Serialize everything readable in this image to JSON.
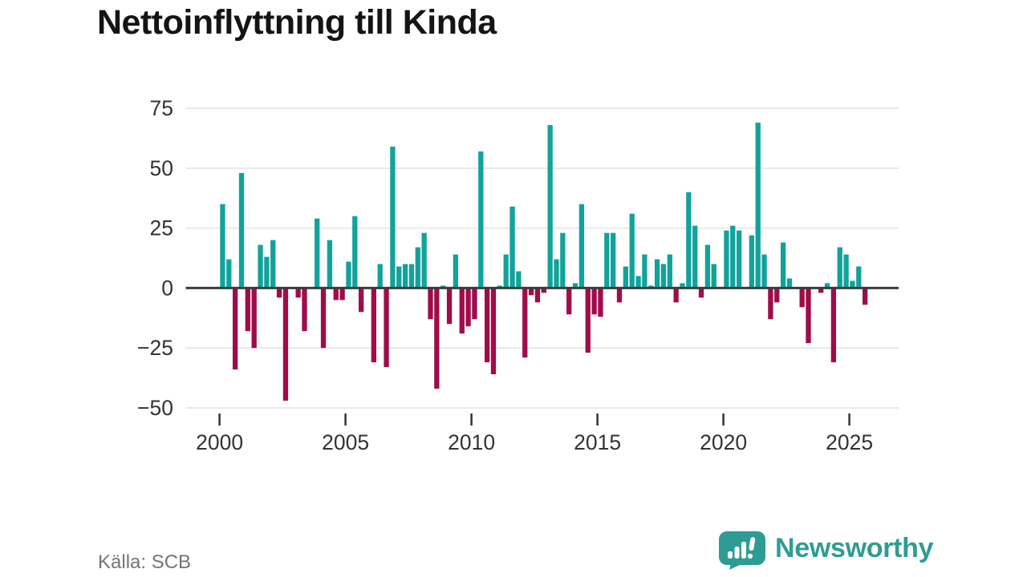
{
  "header": {
    "title": "Nettoinflyttning till Kinda"
  },
  "chart_data": {
    "type": "bar",
    "title": "Nettoinflyttning till Kinda",
    "frequency": "quarterly",
    "period_start": "2000 Q1",
    "period_end": "2025 Q3",
    "values": [
      35,
      12,
      -34,
      48,
      -18,
      -25,
      18,
      13,
      20,
      -4,
      -47,
      0,
      -4,
      -18,
      0,
      29,
      -25,
      20,
      -5,
      -5,
      11,
      30,
      -10,
      0,
      -31,
      10,
      -33,
      59,
      9,
      10,
      10,
      17,
      23,
      -13,
      -42,
      1,
      -15,
      14,
      -19,
      -16,
      -13,
      57,
      -31,
      -36,
      1,
      14,
      34,
      7,
      -29,
      -3,
      -6,
      -2,
      68,
      12,
      23,
      -11,
      2,
      35,
      -27,
      -11,
      -12,
      23,
      23,
      -6,
      9,
      31,
      5,
      14,
      1,
      12,
      10,
      14,
      -6,
      2,
      40,
      26,
      -4,
      18,
      10,
      0,
      24,
      26,
      24,
      0,
      22,
      69,
      14,
      -13,
      -6,
      19,
      4,
      0,
      -8,
      -23,
      0,
      -2,
      2,
      -31,
      17,
      14,
      3,
      9,
      -7
    ],
    "yticks": [
      {
        "value": 75,
        "label": "75"
      },
      {
        "value": 50,
        "label": "50"
      },
      {
        "value": 25,
        "label": "25"
      },
      {
        "value": 0,
        "label": "0"
      },
      {
        "value": -25,
        "label": "−25"
      },
      {
        "value": -50,
        "label": "−50"
      }
    ],
    "xticks": [
      {
        "year": 2000,
        "label": "2000"
      },
      {
        "year": 2005,
        "label": "2005"
      },
      {
        "year": 2010,
        "label": "2010"
      },
      {
        "year": 2015,
        "label": "2015"
      },
      {
        "year": 2020,
        "label": "2020"
      },
      {
        "year": 2025,
        "label": "2025"
      }
    ],
    "ylim": [
      -55,
      78
    ],
    "grid": true,
    "legend": "none",
    "positive_color": "#11a39b",
    "negative_color": "#a00c4b",
    "grid_color": "#e4e4e4",
    "zero_line_color": "#3b3b3b",
    "axis_text_color": "#333333"
  },
  "footer": {
    "source": "Källa: SCB",
    "brand": "Newsworthy",
    "brand_color": "#2e9c95"
  }
}
